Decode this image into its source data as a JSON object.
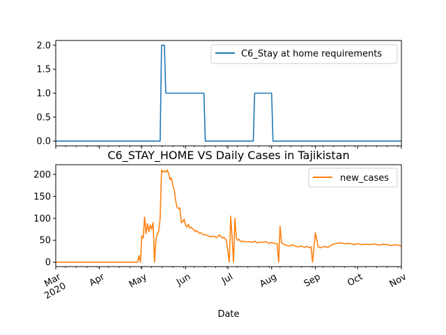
{
  "chart_data": [
    {
      "type": "line",
      "title": "",
      "xlabel": "",
      "ylabel": "",
      "ylim": [
        -0.1,
        2.1
      ],
      "yticks": [
        "0.0",
        "0.5",
        "1.0",
        "1.5",
        "2.0"
      ],
      "xlim": [
        "2020-03-01",
        "2020-11-01"
      ],
      "legend_position": "top-right",
      "grid": false,
      "series": [
        {
          "name": "C6_Stay at home requirements",
          "color": "#1f77b4",
          "x": [
            "2020-03-01",
            "2020-05-14",
            "2020-05-15",
            "2020-05-17",
            "2020-05-18",
            "2020-06-14",
            "2020-06-15",
            "2020-07-19",
            "2020-07-20",
            "2020-08-01",
            "2020-08-02",
            "2020-11-01"
          ],
          "y": [
            0,
            0,
            2,
            2,
            1,
            1,
            0,
            0,
            1,
            1,
            0,
            0
          ]
        }
      ]
    },
    {
      "type": "line",
      "title": "C6_STAY_HOME VS Daily Cases in Tajikistan",
      "xlabel": "Date",
      "ylabel": "",
      "ylim": [
        -10,
        222
      ],
      "yticks": [
        "0",
        "50",
        "100",
        "150",
        "200"
      ],
      "xlim": [
        "2020-03-01",
        "2020-11-01"
      ],
      "xticks": [
        "Mar\n2020",
        "Apr",
        "May",
        "Jun",
        "Jul",
        "Aug",
        "Sep",
        "Oct",
        "Nov"
      ],
      "legend_position": "top-right",
      "grid": false,
      "series": [
        {
          "name": "new_cases",
          "color": "#ff7f0e",
          "x": [
            "2020-03-01",
            "2020-04-28",
            "2020-04-29",
            "2020-04-30",
            "2020-05-01",
            "2020-05-02",
            "2020-05-03",
            "2020-05-04",
            "2020-05-05",
            "2020-05-06",
            "2020-05-07",
            "2020-05-08",
            "2020-05-09",
            "2020-05-10",
            "2020-05-11",
            "2020-05-12",
            "2020-05-13",
            "2020-05-14",
            "2020-05-15",
            "2020-05-16",
            "2020-05-17",
            "2020-05-18",
            "2020-05-19",
            "2020-05-20",
            "2020-05-21",
            "2020-05-22",
            "2020-05-23",
            "2020-05-24",
            "2020-05-25",
            "2020-05-26",
            "2020-05-27",
            "2020-05-28",
            "2020-05-29",
            "2020-05-30",
            "2020-05-31",
            "2020-06-01",
            "2020-06-02",
            "2020-06-03",
            "2020-06-04",
            "2020-06-05",
            "2020-06-06",
            "2020-06-07",
            "2020-06-08",
            "2020-06-09",
            "2020-06-10",
            "2020-06-11",
            "2020-06-12",
            "2020-06-13",
            "2020-06-14",
            "2020-06-15",
            "2020-06-17",
            "2020-06-19",
            "2020-06-21",
            "2020-06-23",
            "2020-06-25",
            "2020-06-27",
            "2020-06-28",
            "2020-06-30",
            "2020-07-02",
            "2020-07-03",
            "2020-07-04",
            "2020-07-05",
            "2020-07-06",
            "2020-07-07",
            "2020-07-08",
            "2020-07-09",
            "2020-07-10",
            "2020-07-12",
            "2020-07-14",
            "2020-07-16",
            "2020-07-18",
            "2020-07-20",
            "2020-07-22",
            "2020-07-24",
            "2020-07-26",
            "2020-07-28",
            "2020-07-30",
            "2020-08-01",
            "2020-08-03",
            "2020-08-05",
            "2020-08-06",
            "2020-08-07",
            "2020-08-08",
            "2020-08-10",
            "2020-08-12",
            "2020-08-14",
            "2020-08-16",
            "2020-08-18",
            "2020-08-20",
            "2020-08-22",
            "2020-08-24",
            "2020-08-26",
            "2020-08-28",
            "2020-08-29",
            "2020-08-30",
            "2020-09-01",
            "2020-09-03",
            "2020-09-05",
            "2020-09-07",
            "2020-09-10",
            "2020-09-13",
            "2020-09-16",
            "2020-09-19",
            "2020-09-22",
            "2020-09-25",
            "2020-09-28",
            "2020-10-01",
            "2020-10-04",
            "2020-10-07",
            "2020-10-10",
            "2020-10-13",
            "2020-10-16",
            "2020-10-19",
            "2020-10-22",
            "2020-10-25",
            "2020-10-28",
            "2020-11-01"
          ],
          "y": [
            0,
            0,
            15,
            0,
            60,
            55,
            103,
            65,
            88,
            70,
            85,
            75,
            90,
            0,
            50,
            65,
            70,
            100,
            210,
            205,
            208,
            205,
            210,
            202,
            188,
            192,
            175,
            165,
            140,
            125,
            122,
            124,
            90,
            92,
            98,
            85,
            80,
            86,
            78,
            80,
            76,
            73,
            70,
            72,
            68,
            66,
            67,
            64,
            62,
            63,
            60,
            58,
            59,
            56,
            62,
            55,
            57,
            50,
            0,
            105,
            55,
            0,
            100,
            55,
            50,
            52,
            47,
            48,
            46,
            47,
            45,
            48,
            44,
            46,
            45,
            47,
            43,
            45,
            43,
            42,
            0,
            82,
            45,
            40,
            38,
            37,
            40,
            36,
            35,
            37,
            34,
            36,
            33,
            35,
            0,
            67,
            35,
            33,
            36,
            34,
            40,
            43,
            44,
            42,
            43,
            40,
            42,
            40,
            41,
            40,
            42,
            39,
            41,
            40,
            38,
            40,
            37
          ]
        }
      ]
    }
  ]
}
